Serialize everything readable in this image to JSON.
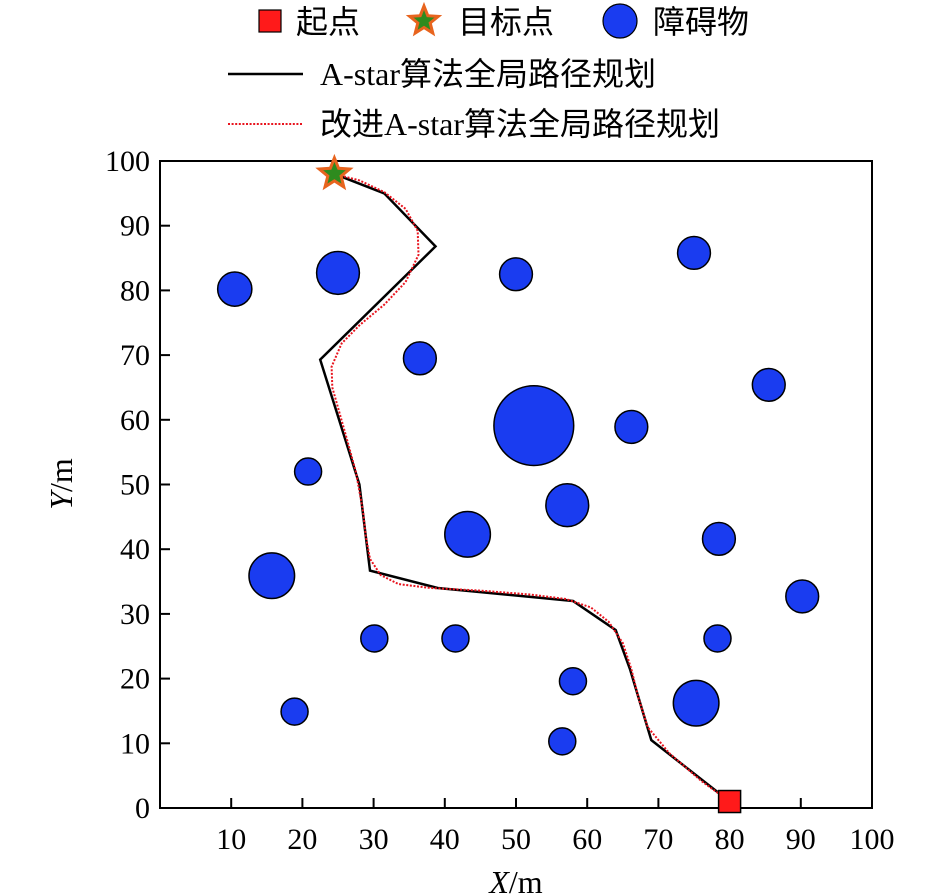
{
  "chart_data": {
    "type": "scatter",
    "title": "",
    "xlabel": {
      "var": "X",
      "unit": "/m"
    },
    "ylabel": {
      "var": "Y",
      "unit": "/m"
    },
    "xlim": [
      0,
      100
    ],
    "ylim": [
      0,
      100
    ],
    "xticks": [
      10,
      20,
      30,
      40,
      50,
      60,
      70,
      80,
      90,
      100
    ],
    "yticks": [
      0,
      10,
      20,
      30,
      40,
      50,
      60,
      70,
      80,
      90,
      100
    ],
    "grid": false,
    "legend": {
      "placement": "top",
      "items": [
        {
          "key": "start",
          "label": "起点",
          "symbol": "square"
        },
        {
          "key": "goal",
          "label": "目标点",
          "symbol": "star"
        },
        {
          "key": "obstacle",
          "label": "障碍物",
          "symbol": "circle"
        },
        {
          "key": "astar",
          "label": "A-star算法全局路径规划",
          "symbol": "solid-line"
        },
        {
          "key": "improved",
          "label": "改进A-star算法全局路径规划",
          "symbol": "dotted-line"
        }
      ]
    },
    "colors": {
      "start": "#ff1a1a",
      "goal_fill": "#2e8b1e",
      "goal_stroke": "#e8641e",
      "obstacle": "#1a3cf0",
      "astar": "#000000",
      "improved": "#e8141e"
    },
    "start": {
      "x": 80,
      "y": 1
    },
    "goal": {
      "x": 24.5,
      "y": 98
    },
    "obstacles": [
      {
        "x": 10.5,
        "y": 80.2,
        "r": 2.4
      },
      {
        "x": 25,
        "y": 82.7,
        "r": 3
      },
      {
        "x": 50,
        "y": 82.5,
        "r": 2.3
      },
      {
        "x": 75,
        "y": 85.8,
        "r": 2.3
      },
      {
        "x": 36.5,
        "y": 69.5,
        "r": 2.3
      },
      {
        "x": 85.5,
        "y": 65.4,
        "r": 2.3
      },
      {
        "x": 52.5,
        "y": 59.1,
        "r": 5.6
      },
      {
        "x": 66.2,
        "y": 58.9,
        "r": 2.3
      },
      {
        "x": 20.8,
        "y": 52,
        "r": 1.9
      },
      {
        "x": 57.2,
        "y": 46.8,
        "r": 3
      },
      {
        "x": 43.2,
        "y": 42.3,
        "r": 3.2
      },
      {
        "x": 78.5,
        "y": 41.6,
        "r": 2.3
      },
      {
        "x": 15.7,
        "y": 35.9,
        "r": 3.2
      },
      {
        "x": 90.2,
        "y": 32.7,
        "r": 2.3
      },
      {
        "x": 30.1,
        "y": 26.2,
        "r": 1.9
      },
      {
        "x": 41.5,
        "y": 26.2,
        "r": 1.9
      },
      {
        "x": 78.3,
        "y": 26.2,
        "r": 1.9
      },
      {
        "x": 58,
        "y": 19.6,
        "r": 1.9
      },
      {
        "x": 75.3,
        "y": 16.2,
        "r": 3.2
      },
      {
        "x": 18.9,
        "y": 14.9,
        "r": 1.9
      },
      {
        "x": 56.5,
        "y": 10.3,
        "r": 1.9
      }
    ],
    "series": [
      {
        "key": "astar",
        "style": "solid",
        "points": [
          [
            80,
            1
          ],
          [
            69,
            10.5
          ],
          [
            66,
            21.5
          ],
          [
            64,
            27.5
          ],
          [
            58,
            32
          ],
          [
            39,
            34
          ],
          [
            29.5,
            36.7
          ],
          [
            28,
            50
          ],
          [
            22.5,
            69.3
          ],
          [
            38.7,
            86.8
          ],
          [
            31.5,
            95
          ],
          [
            24.5,
            98
          ]
        ]
      },
      {
        "key": "improved",
        "style": "dotted",
        "points": [
          [
            80,
            1
          ],
          [
            76,
            4.2
          ],
          [
            71.5,
            8.5
          ],
          [
            68.5,
            12.5
          ],
          [
            67.2,
            17
          ],
          [
            66.2,
            21.5
          ],
          [
            65,
            25.5
          ],
          [
            63,
            28.8
          ],
          [
            60.5,
            31
          ],
          [
            57,
            32.3
          ],
          [
            52,
            33
          ],
          [
            45,
            33.6
          ],
          [
            38,
            34
          ],
          [
            33.5,
            34.6
          ],
          [
            31,
            36
          ],
          [
            29.5,
            38.5
          ],
          [
            28.9,
            42
          ],
          [
            28.5,
            46
          ],
          [
            27.5,
            52
          ],
          [
            26,
            58
          ],
          [
            24.2,
            65
          ],
          [
            24.1,
            68.2
          ],
          [
            25.5,
            71.8
          ],
          [
            28,
            74.6
          ],
          [
            31.5,
            77.8
          ],
          [
            34.5,
            81.3
          ],
          [
            36.3,
            85.5
          ],
          [
            36.2,
            89.2
          ],
          [
            34.5,
            92.6
          ],
          [
            31.5,
            95.2
          ],
          [
            28,
            97
          ],
          [
            24.5,
            98
          ]
        ]
      }
    ]
  }
}
